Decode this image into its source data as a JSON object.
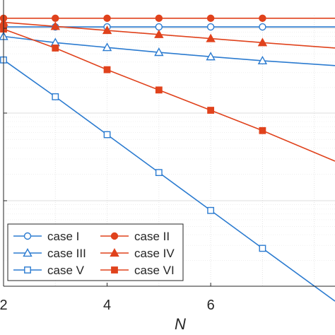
{
  "chart_data": {
    "type": "line",
    "xlabel": "N",
    "ylabel": "",
    "xlim": [
      2,
      8.4
    ],
    "ylim": [
      0.0,
      1.0
    ],
    "x_ticks": [
      2,
      4,
      6
    ],
    "grid": true,
    "legend_position": "bottom-left",
    "series": [
      {
        "name": "case I",
        "color": "#2b7bd0",
        "marker": "circle-open",
        "x": [
          2,
          3,
          4,
          5,
          6,
          7,
          8.4
        ],
        "y": [
          0.958,
          0.958,
          0.958,
          0.958,
          0.958,
          0.958,
          0.958
        ]
      },
      {
        "name": "case II",
        "color": "#e0421c",
        "marker": "circle-filled",
        "x": [
          2,
          3,
          4,
          5,
          6,
          7,
          8.4
        ],
        "y": [
          0.99,
          0.99,
          0.99,
          0.99,
          0.99,
          0.99,
          0.99
        ]
      },
      {
        "name": "case III",
        "color": "#2b7bd0",
        "marker": "triangle-open",
        "x": [
          2,
          3,
          4,
          5,
          6,
          7,
          8.4
        ],
        "y": [
          0.923,
          0.9,
          0.882,
          0.864,
          0.848,
          0.833,
          0.815
        ]
      },
      {
        "name": "case IV",
        "color": "#e0421c",
        "marker": "triangle-filled",
        "x": [
          2,
          3,
          4,
          5,
          6,
          7,
          8.4
        ],
        "y": [
          0.975,
          0.96,
          0.945,
          0.93,
          0.915,
          0.9,
          0.88
        ]
      },
      {
        "name": "case V",
        "color": "#2b7bd0",
        "marker": "square-open",
        "x": [
          2,
          3,
          4,
          5,
          6,
          7,
          8.4
        ],
        "y": [
          0.836,
          0.7,
          0.56,
          0.42,
          0.28,
          0.14,
          -0.055
        ]
      },
      {
        "name": "case VI",
        "color": "#e0421c",
        "marker": "square-filled",
        "x": [
          2,
          3,
          4,
          5,
          6,
          7,
          8.4
        ],
        "y": [
          0.95,
          0.88,
          0.8,
          0.725,
          0.65,
          0.575,
          0.462
        ]
      }
    ]
  }
}
